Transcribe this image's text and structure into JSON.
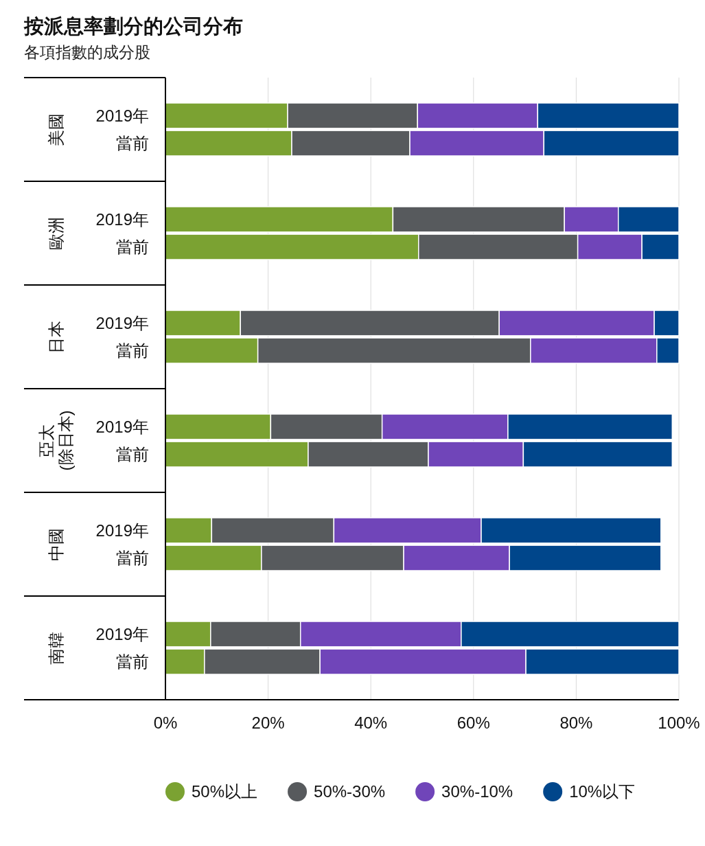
{
  "chart_data": [
    {
      "type": "bar",
      "title": "按派息率劃分的公司分布",
      "subtitle": "各項指數的成分股",
      "ylabel": "美國",
      "orientation": "horizontal",
      "stacked": true,
      "categories": [
        "2019年",
        "當前"
      ],
      "series": [
        {
          "color": "#7ba232",
          "values": [
            23.8,
            24.6
          ]
        },
        {
          "color": "#575a5d",
          "values": [
            25.3,
            23.0
          ]
        },
        {
          "color": "#7045b9",
          "values": [
            23.4,
            26.1
          ]
        },
        {
          "color": "#00468b",
          "values": [
            27.5,
            26.3
          ]
        }
      ],
      "xlim": [
        0,
        100
      ],
      "xticks": [
        {
          "value": 0,
          "label": null
        },
        {
          "value": 20,
          "label": null
        },
        {
          "value": 40,
          "label": null
        },
        {
          "value": 60,
          "label": null
        },
        {
          "value": 80,
          "label": null
        },
        {
          "value": 100,
          "label": null
        }
      ],
      "grid": "x",
      "tick_labels": "y"
    },
    {
      "type": "bar",
      "ylabel": "歐洲",
      "orientation": "horizontal",
      "stacked": true,
      "categories": [
        "2019年",
        "當前"
      ],
      "series": [
        {
          "color": "#7ba232",
          "values": [
            44.3,
            49.3
          ]
        },
        {
          "color": "#575a5d",
          "values": [
            33.4,
            31.0
          ]
        },
        {
          "color": "#7045b9",
          "values": [
            10.5,
            12.5
          ]
        },
        {
          "color": "#00468b",
          "values": [
            11.8,
            7.2
          ]
        }
      ],
      "xlim": [
        0,
        100
      ],
      "xticks": [
        {
          "value": 0,
          "label": null
        },
        {
          "value": 20,
          "label": null
        },
        {
          "value": 40,
          "label": null
        },
        {
          "value": 60,
          "label": null
        },
        {
          "value": 80,
          "label": null
        },
        {
          "value": 100,
          "label": null
        }
      ],
      "grid": "x",
      "tick_labels": "y"
    },
    {
      "type": "bar",
      "ylabel": "日本",
      "orientation": "horizontal",
      "stacked": true,
      "categories": [
        "2019年",
        "當前"
      ],
      "series": [
        {
          "color": "#7ba232",
          "values": [
            14.6,
            18.0
          ]
        },
        {
          "color": "#575a5d",
          "values": [
            50.4,
            53.1
          ]
        },
        {
          "color": "#7045b9",
          "values": [
            30.2,
            24.6
          ]
        },
        {
          "color": "#00468b",
          "values": [
            4.8,
            4.3
          ]
        }
      ],
      "xlim": [
        0,
        100
      ],
      "xticks": [
        {
          "value": 0,
          "label": null
        },
        {
          "value": 20,
          "label": null
        },
        {
          "value": 40,
          "label": null
        },
        {
          "value": 60,
          "label": null
        },
        {
          "value": 80,
          "label": null
        },
        {
          "value": 100,
          "label": null
        }
      ],
      "grid": "x",
      "tick_labels": "y"
    },
    {
      "type": "bar",
      "ylabel": "亞太\n(除日本)",
      "orientation": "horizontal",
      "stacked": true,
      "categories": [
        "2019年",
        "當前"
      ],
      "series": [
        {
          "color": "#7ba232",
          "values": [
            20.5,
            27.8
          ]
        },
        {
          "color": "#575a5d",
          "values": [
            21.7,
            23.4
          ]
        },
        {
          "color": "#7045b9",
          "values": [
            24.5,
            18.5
          ]
        },
        {
          "color": "#00468b",
          "values": [
            32.0,
            29.0
          ]
        }
      ],
      "xlim": [
        0,
        100
      ],
      "xticks": [
        {
          "value": 0,
          "label": null
        },
        {
          "value": 20,
          "label": null
        },
        {
          "value": 40,
          "label": null
        },
        {
          "value": 60,
          "label": null
        },
        {
          "value": 80,
          "label": null
        },
        {
          "value": 100,
          "label": null
        }
      ],
      "grid": "x",
      "tick_labels": "y"
    },
    {
      "type": "bar",
      "ylabel": "中國",
      "orientation": "horizontal",
      "stacked": true,
      "categories": [
        "2019年",
        "當前"
      ],
      "series": [
        {
          "color": "#7ba232",
          "values": [
            9.0,
            18.7
          ]
        },
        {
          "color": "#575a5d",
          "values": [
            23.8,
            27.7
          ]
        },
        {
          "color": "#7045b9",
          "values": [
            28.7,
            20.6
          ]
        },
        {
          "color": "#00468b",
          "values": [
            35.0,
            29.5
          ]
        }
      ],
      "xlim": [
        0,
        100
      ],
      "xticks": [
        {
          "value": 0,
          "label": null
        },
        {
          "value": 20,
          "label": null
        },
        {
          "value": 40,
          "label": null
        },
        {
          "value": 60,
          "label": null
        },
        {
          "value": 80,
          "label": null
        },
        {
          "value": 100,
          "label": null
        }
      ],
      "grid": "x",
      "tick_labels": "y"
    },
    {
      "type": "bar",
      "ylabel": "南韓",
      "orientation": "horizontal",
      "stacked": true,
      "categories": [
        "2019年",
        "當前"
      ],
      "series": [
        {
          "name": "50%以上",
          "color": "#7ba232",
          "values": [
            8.8,
            7.6
          ]
        },
        {
          "name": "50%-30%",
          "color": "#575a5d",
          "values": [
            17.5,
            22.5
          ]
        },
        {
          "name": "30%-10%",
          "color": "#7045b9",
          "values": [
            31.3,
            40.1
          ]
        },
        {
          "name": "10%以下",
          "color": "#00468b",
          "values": [
            42.4,
            29.8
          ]
        }
      ],
      "xlim": [
        0,
        100
      ],
      "xticks": [
        {
          "value": 0,
          "label": "0%"
        },
        {
          "value": 20,
          "label": "20%"
        },
        {
          "value": 40,
          "label": "40%"
        },
        {
          "value": 60,
          "label": "60%"
        },
        {
          "value": 80,
          "label": "80%"
        },
        {
          "value": 100,
          "label": "100%"
        }
      ],
      "grid": "x",
      "legend": "bottom"
    }
  ]
}
